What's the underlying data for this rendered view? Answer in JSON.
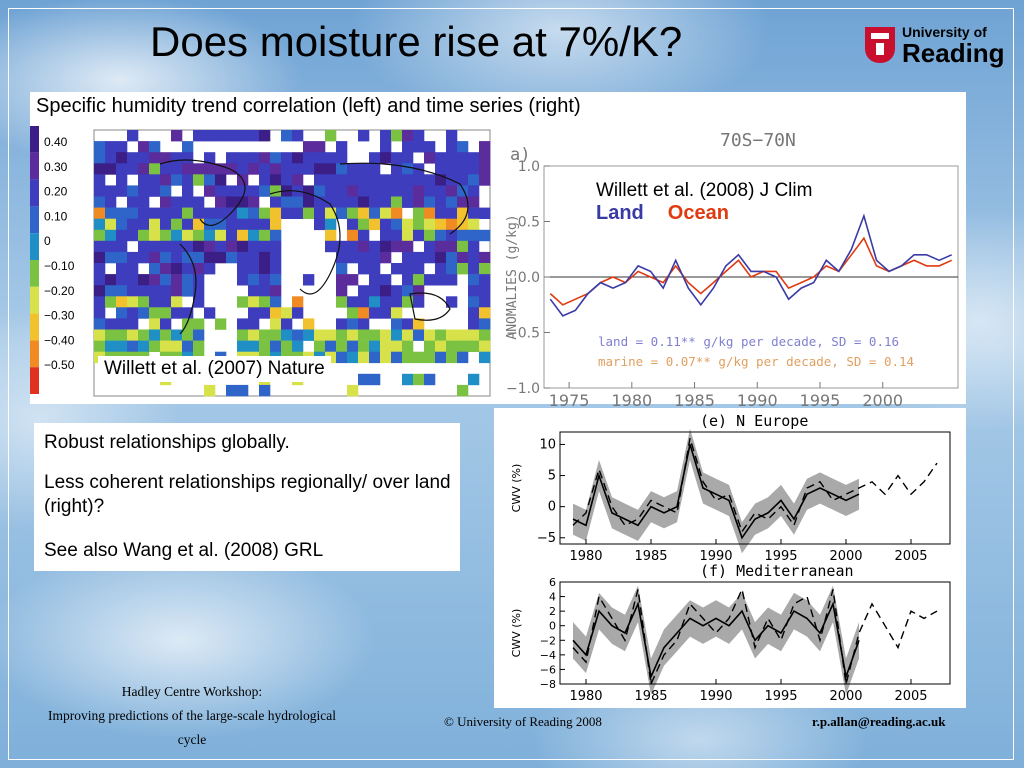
{
  "slide": {
    "title": "Does moisture rise at 7%/K?",
    "logo": {
      "line1": "University of",
      "line2": "Reading"
    },
    "subtitle": "Specific humidity trend correlation (left) and time series (right)",
    "footer": {
      "left_line1": "Hadley Centre Workshop:",
      "left_line2": "Improving predictions of the large-scale hydrological",
      "left_line3": "cycle",
      "middle": "© University of Reading 2008",
      "right": "r.p.allan@reading.ac.uk"
    },
    "notes": [
      "Robust relationships globally.",
      "Less coherent relationships regionally/ over land (right)?",
      "See also Wang et al. (2008) GRL"
    ]
  },
  "colors": {
    "land": "#3a3aa6",
    "ocean": "#e03a10",
    "shading": "#9a9a9a"
  },
  "chart_data": [
    {
      "type": "heatmap",
      "title": "",
      "annotation": "Willett et al. (2007) Nature",
      "colorbar": {
        "labels": [
          "0.40",
          "0.30",
          "0.20",
          "0.10",
          "0",
          "−0.10",
          "−0.20",
          "−0.30",
          "−0.40",
          "−0.50"
        ],
        "colors": [
          "#3b1f86",
          "#5a2c9c",
          "#3d3dbd",
          "#2f64c8",
          "#1f8fc5",
          "#7cc242",
          "#d7e24a",
          "#f2c12e",
          "#f08a23",
          "#e0311f"
        ]
      }
    },
    {
      "type": "line",
      "panel_label": "a)",
      "title": "70S−70N",
      "annotation": "Willett et al. (2008) J Clim",
      "ylabel": "ANOMALIES (g/kg)",
      "xlabel": "",
      "xlim": [
        1973,
        2006
      ],
      "ylim": [
        -1.0,
        1.0
      ],
      "xticks": [
        1975,
        1980,
        1985,
        1990,
        1995,
        2000
      ],
      "yticks": [
        "1.0",
        "0.5",
        "0.0",
        "−0.5",
        "−1.0"
      ],
      "legend": [
        "Land",
        "Ocean"
      ],
      "stats_text": [
        "land = 0.11** g/kg per decade, SD = 0.16",
        "marine = 0.07** g/kg per decade, SD = 0.14"
      ],
      "series": [
        {
          "name": "Land",
          "x": [
            1973.5,
            1974.5,
            1975.5,
            1976.5,
            1977.5,
            1978.5,
            1979.5,
            1980.5,
            1981.5,
            1982.5,
            1983.5,
            1984.5,
            1985.5,
            1986.5,
            1987.5,
            1988.5,
            1989.5,
            1990.5,
            1991.5,
            1992.5,
            1993.5,
            1994.5,
            1995.5,
            1996.5,
            1997.5,
            1998.5,
            1999.5,
            2000.5,
            2001.5,
            2002.5,
            2003.5,
            2004.5,
            2005.5
          ],
          "y": [
            -0.2,
            -0.35,
            -0.3,
            -0.15,
            -0.05,
            -0.1,
            -0.05,
            0.1,
            0.05,
            -0.1,
            0.15,
            -0.1,
            -0.25,
            -0.1,
            0.1,
            0.2,
            0.05,
            0.05,
            0.0,
            -0.2,
            -0.1,
            -0.05,
            0.15,
            0.05,
            0.25,
            0.55,
            0.15,
            0.05,
            0.1,
            0.2,
            0.2,
            0.15,
            0.2
          ]
        },
        {
          "name": "Ocean",
          "x": [
            1973.5,
            1974.5,
            1975.5,
            1976.5,
            1977.5,
            1978.5,
            1979.5,
            1980.5,
            1981.5,
            1982.5,
            1983.5,
            1984.5,
            1985.5,
            1986.5,
            1987.5,
            1988.5,
            1989.5,
            1990.5,
            1991.5,
            1992.5,
            1993.5,
            1994.5,
            1995.5,
            1996.5,
            1997.5,
            1998.5,
            1999.5,
            2000.5,
            2001.5,
            2002.5,
            2003.5,
            2004.5,
            2005.5
          ],
          "y": [
            -0.15,
            -0.25,
            -0.2,
            -0.15,
            -0.05,
            0.0,
            -0.05,
            0.05,
            0.0,
            -0.05,
            0.1,
            -0.05,
            -0.15,
            -0.05,
            0.05,
            0.15,
            0.0,
            0.05,
            0.05,
            -0.1,
            -0.05,
            0.0,
            0.1,
            0.05,
            0.2,
            0.35,
            0.1,
            0.05,
            0.1,
            0.15,
            0.1,
            0.1,
            0.15
          ]
        }
      ]
    },
    {
      "type": "line",
      "panel_label": "(e)",
      "title": "N Europe",
      "ylabel": "CWV (%)",
      "xlim": [
        1978,
        2008
      ],
      "ylim": [
        -6,
        12
      ],
      "xticks": [
        1980,
        1985,
        1990,
        1995,
        2000,
        2005
      ],
      "yticks": [
        "10",
        "5",
        "0",
        "−5"
      ],
      "series": [
        {
          "name": "",
          "x": [
            1979,
            1980,
            1981,
            1982,
            1983,
            1984,
            1985,
            1986,
            1987,
            1988,
            1989,
            1990,
            1991,
            1992,
            1993,
            1994,
            1995,
            1996,
            1997,
            1998,
            1999,
            2000,
            2001
          ],
          "y": [
            -2,
            -3,
            5,
            -1,
            -2,
            -3,
            0,
            -1,
            0,
            10,
            3,
            2,
            1,
            -5,
            -2,
            -1,
            1,
            -2,
            2,
            3,
            2,
            1,
            2
          ]
        },
        {
          "name": "",
          "x": [
            1979,
            1980,
            1981,
            1982,
            1983,
            1984,
            1985,
            1986,
            1987,
            1988,
            1989,
            1990,
            1991,
            1992,
            1993,
            1994,
            1995,
            1996,
            1997,
            1998,
            1999,
            2000,
            2001,
            2002,
            2003,
            2004,
            2005,
            2006,
            2007
          ],
          "y": [
            -3,
            -1,
            6,
            0,
            -3,
            -2,
            1,
            0,
            -1,
            11,
            4,
            1,
            2,
            -4,
            -1,
            -2,
            0,
            -3,
            3,
            4,
            1,
            2,
            3,
            4,
            2,
            5,
            2,
            4,
            7
          ]
        }
      ]
    },
    {
      "type": "line",
      "panel_label": "(f)",
      "title": "Mediterranean",
      "ylabel": "CWV (%)",
      "xlim": [
        1978,
        2008
      ],
      "ylim": [
        -8,
        6
      ],
      "xticks": [
        1980,
        1985,
        1990,
        1995,
        2000,
        2005
      ],
      "yticks": [
        "6",
        "4",
        "2",
        "0",
        "−2",
        "−4",
        "−6",
        "−8"
      ],
      "series": [
        {
          "name": "",
          "x": [
            1979,
            1980,
            1981,
            1982,
            1983,
            1984,
            1985,
            1986,
            1987,
            1988,
            1989,
            1990,
            1991,
            1992,
            1993,
            1994,
            1995,
            1996,
            1997,
            1998,
            1999,
            2000,
            2001
          ],
          "y": [
            -2,
            -4,
            2,
            0,
            -1,
            3,
            -7,
            -3,
            -1,
            1,
            0,
            1,
            0,
            2,
            -2,
            0,
            -1,
            2,
            1,
            -1,
            3,
            -7,
            -2
          ]
        },
        {
          "name": "",
          "x": [
            1979,
            1980,
            1981,
            1982,
            1983,
            1984,
            1985,
            1986,
            1987,
            1988,
            1989,
            1990,
            1991,
            1992,
            1993,
            1994,
            1995,
            1996,
            1997,
            1998,
            1999,
            2000,
            2001,
            2002,
            2003,
            2004,
            2005,
            2006,
            2007
          ],
          "y": [
            -3,
            -5,
            4,
            1,
            -2,
            5,
            -8,
            -4,
            -2,
            3,
            1,
            -1,
            1,
            5,
            -3,
            1,
            -2,
            3,
            4,
            -2,
            5,
            -8,
            -1,
            3,
            0,
            -3,
            2,
            1,
            2
          ]
        }
      ]
    }
  ]
}
